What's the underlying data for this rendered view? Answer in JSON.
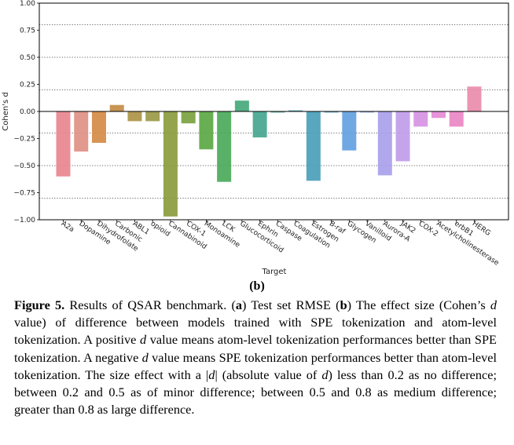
{
  "chart_data": {
    "type": "bar",
    "xlabel": "Target",
    "ylabel": "Cohen's d",
    "ylim": [
      -1.0,
      1.0
    ],
    "yticks": [
      "−1.00",
      "−0.75",
      "−0.50",
      "−0.25",
      "0.00",
      "0.25",
      "0.50",
      "0.75",
      "1.00"
    ],
    "ytick_values": [
      -1.0,
      -0.75,
      -0.5,
      -0.25,
      0.0,
      0.25,
      0.5,
      0.75,
      1.0
    ],
    "grid_lines": [
      -0.8,
      -0.5,
      -0.2,
      0.2,
      0.5,
      0.8
    ],
    "grid": "dotted horizontal at ±0.2, ±0.5, ±0.8",
    "categories": [
      "A2a",
      "Dopamine",
      "Dihydrofolate",
      "Carbonic",
      "ABL1",
      "opioid",
      "Cannabinoid",
      "COX-1",
      "Monoamine",
      "LCK",
      "Glucocorticoid",
      "Ephrin",
      "Caspase",
      "Coagulation",
      "Estrogen",
      "B-raf",
      "Glycogen",
      "Vanilloid",
      "Aurora-A",
      "JAK2",
      "COX-2",
      "Acetylcholinesterase",
      "erbB1",
      "HERG"
    ],
    "values": [
      -0.6,
      -0.37,
      -0.29,
      0.06,
      -0.09,
      -0.09,
      -0.97,
      -0.11,
      -0.35,
      -0.65,
      0.1,
      -0.24,
      -0.01,
      0.01,
      -0.64,
      -0.01,
      -0.36,
      -0.01,
      -0.59,
      -0.46,
      -0.14,
      -0.06,
      -0.14,
      0.23
    ],
    "colors": [
      "#e8868f",
      "#e09084",
      "#d58b47",
      "#c38d45",
      "#ad9545",
      "#9a9a46",
      "#8b9c3e",
      "#7aa23f",
      "#5ba844",
      "#4aaa5a",
      "#46a97b",
      "#47a690",
      "#48a39e",
      "#49a2ac",
      "#4aa0ba",
      "#4c9fc9",
      "#63a1e0",
      "#8fa3ec",
      "#a9a0ec",
      "#c19cea",
      "#d792e4",
      "#e58bd8",
      "#ea87c5",
      "#e98cab"
    ]
  },
  "panel_label": "(b)",
  "caption": {
    "label": "Figure 5.",
    "p1": " Results of QSAR benchmark. (",
    "a": "a",
    "p2": ") Test set RMSE (",
    "b": "b",
    "p3": ") The effect size (Cohen’s ",
    "d1": "d",
    "p4": " value) of difference between models trained with SPE tokenization and atom-level tokenization. A positive ",
    "d2": "d",
    "p5": " value means atom-level tokenization performances better than SPE tokenization. A negative ",
    "d3": "d",
    "p6": " value means SPE tokenization performances better than atom-level tokenization. The size effect with a |",
    "d4": "d",
    "p7": "| (absolute value of ",
    "d5": "d",
    "p8": ") less than 0.2 as no difference; between 0.2 and 0.5 as of minor difference; between 0.5 and 0.8 as medium difference; greater than 0.8 as large difference."
  }
}
